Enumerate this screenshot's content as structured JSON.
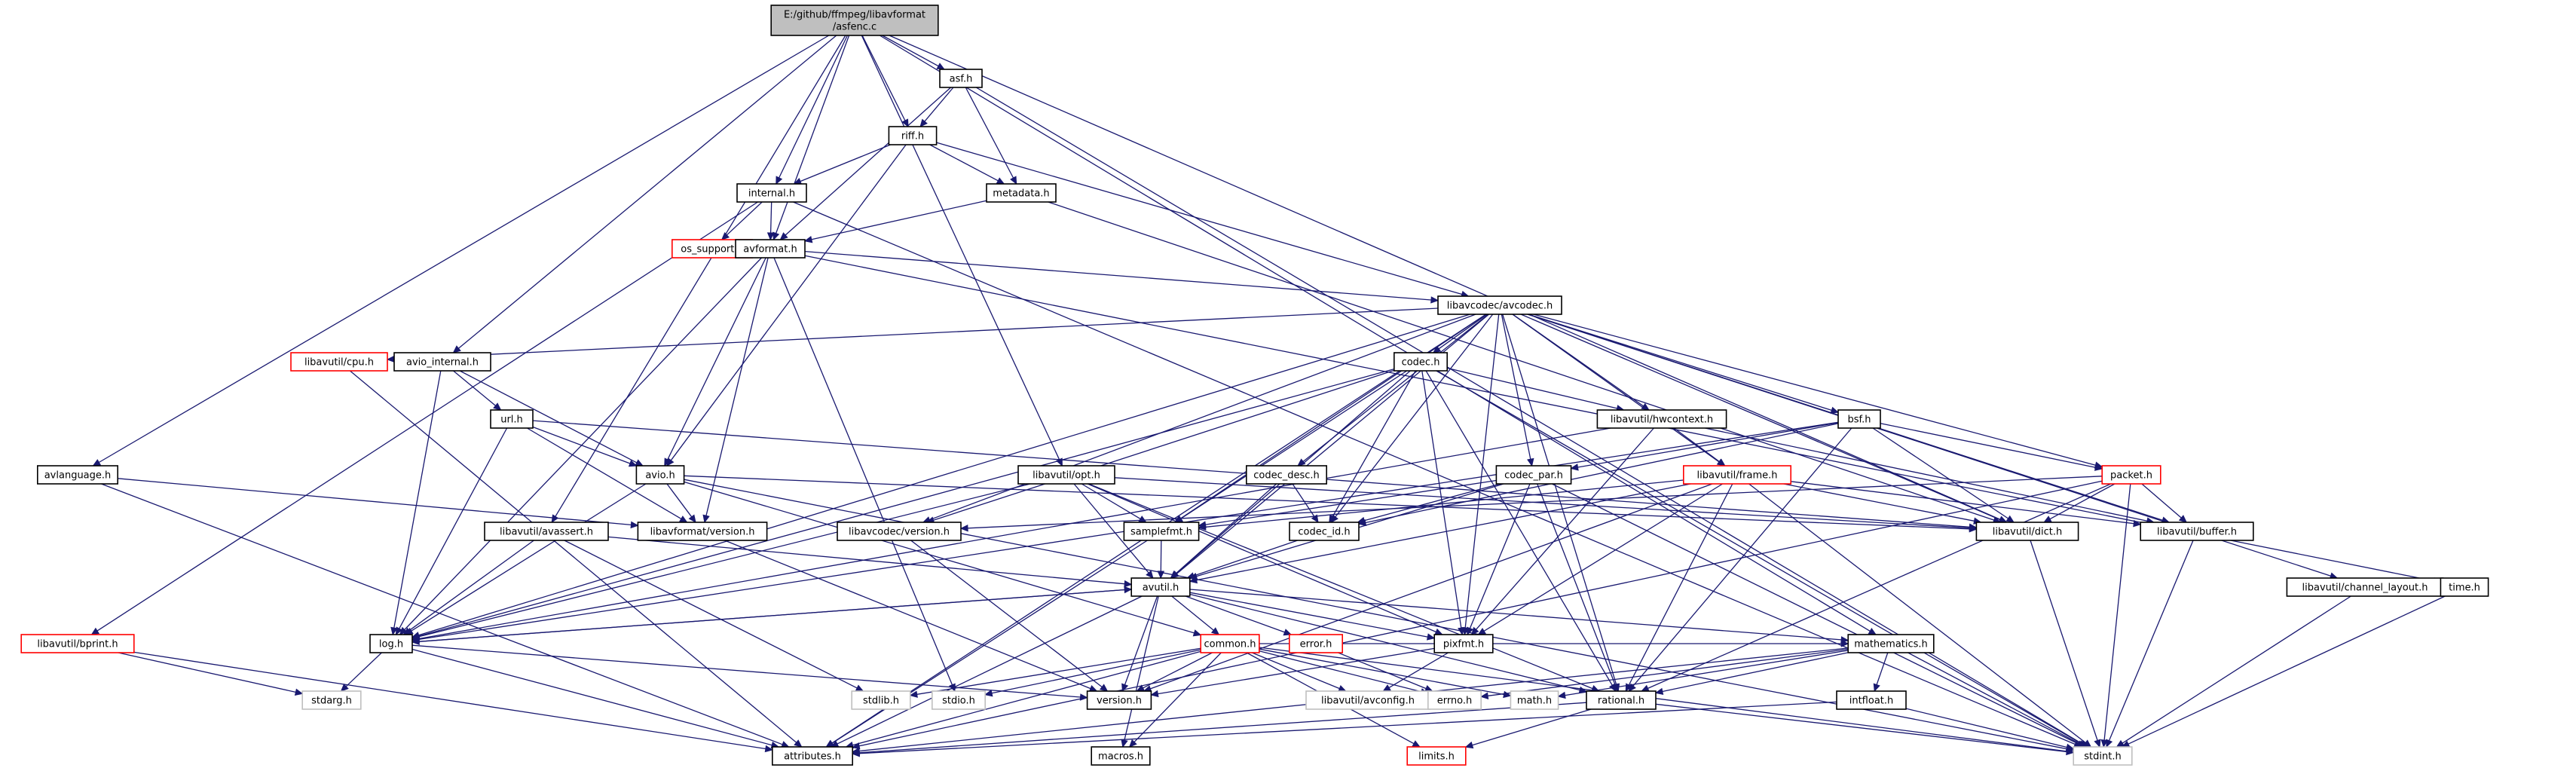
{
  "colors": {
    "root_fill": "#bfbfbf",
    "normal_fill": "#ffffff",
    "normal_border": "#000000",
    "truncated_border": "#ff0000",
    "edge": "#191970"
  },
  "nodes": [
    {
      "id": "asfenc",
      "lines": [
        "E:/github/ffmpeg/libavformat",
        "/asfenc.c"
      ],
      "style": "root"
    },
    {
      "id": "asf",
      "lines": [
        "asf.h"
      ],
      "style": "normal"
    },
    {
      "id": "riff",
      "lines": [
        "riff.h"
      ],
      "style": "normal"
    },
    {
      "id": "internal",
      "lines": [
        "internal.h"
      ],
      "style": "normal"
    },
    {
      "id": "metadata",
      "lines": [
        "metadata.h"
      ],
      "style": "normal"
    },
    {
      "id": "os_support",
      "lines": [
        "os_support.h"
      ],
      "style": "truncated"
    },
    {
      "id": "avformat",
      "lines": [
        "avformat.h"
      ],
      "style": "normal"
    },
    {
      "id": "avcodec",
      "lines": [
        "libavcodec/avcodec.h"
      ],
      "style": "normal"
    },
    {
      "id": "cpu",
      "lines": [
        "libavutil/cpu.h"
      ],
      "style": "truncated"
    },
    {
      "id": "avio_internal",
      "lines": [
        "avio_internal.h"
      ],
      "style": "normal"
    },
    {
      "id": "codec",
      "lines": [
        "codec.h"
      ],
      "style": "normal"
    },
    {
      "id": "url",
      "lines": [
        "url.h"
      ],
      "style": "normal"
    },
    {
      "id": "hwcontext",
      "lines": [
        "libavutil/hwcontext.h"
      ],
      "style": "normal"
    },
    {
      "id": "bsf",
      "lines": [
        "bsf.h"
      ],
      "style": "normal"
    },
    {
      "id": "avlanguage",
      "lines": [
        "avlanguage.h"
      ],
      "style": "normal"
    },
    {
      "id": "avio",
      "lines": [
        "avio.h"
      ],
      "style": "normal"
    },
    {
      "id": "opt",
      "lines": [
        "libavutil/opt.h"
      ],
      "style": "normal"
    },
    {
      "id": "codec_desc",
      "lines": [
        "codec_desc.h"
      ],
      "style": "normal"
    },
    {
      "id": "codec_par",
      "lines": [
        "codec_par.h"
      ],
      "style": "normal"
    },
    {
      "id": "frame",
      "lines": [
        "libavutil/frame.h"
      ],
      "style": "truncated"
    },
    {
      "id": "packet",
      "lines": [
        "packet.h"
      ],
      "style": "truncated"
    },
    {
      "id": "avassert",
      "lines": [
        "libavutil/avassert.h"
      ],
      "style": "normal"
    },
    {
      "id": "lavf_version",
      "lines": [
        "libavformat/version.h"
      ],
      "style": "normal"
    },
    {
      "id": "lavc_version",
      "lines": [
        "libavcodec/version.h"
      ],
      "style": "normal"
    },
    {
      "id": "samplefmt",
      "lines": [
        "samplefmt.h"
      ],
      "style": "normal"
    },
    {
      "id": "codec_id",
      "lines": [
        "codec_id.h"
      ],
      "style": "normal"
    },
    {
      "id": "dict",
      "lines": [
        "libavutil/dict.h"
      ],
      "style": "normal"
    },
    {
      "id": "buffer",
      "lines": [
        "libavutil/buffer.h"
      ],
      "style": "normal"
    },
    {
      "id": "avutil",
      "lines": [
        "avutil.h"
      ],
      "style": "normal"
    },
    {
      "id": "channel_layout",
      "lines": [
        "libavutil/channel_layout.h"
      ],
      "style": "normal"
    },
    {
      "id": "time",
      "lines": [
        "time.h"
      ],
      "style": "normal"
    },
    {
      "id": "bprint",
      "lines": [
        "libavutil/bprint.h"
      ],
      "style": "truncated"
    },
    {
      "id": "log",
      "lines": [
        "log.h"
      ],
      "style": "normal"
    },
    {
      "id": "common",
      "lines": [
        "common.h"
      ],
      "style": "truncated"
    },
    {
      "id": "error",
      "lines": [
        "error.h"
      ],
      "style": "truncated"
    },
    {
      "id": "pixfmt",
      "lines": [
        "pixfmt.h"
      ],
      "style": "normal"
    },
    {
      "id": "mathematics",
      "lines": [
        "mathematics.h"
      ],
      "style": "normal"
    },
    {
      "id": "stdarg",
      "lines": [
        "stdarg.h"
      ],
      "style": "plain"
    },
    {
      "id": "stdlib",
      "lines": [
        "stdlib.h"
      ],
      "style": "plain"
    },
    {
      "id": "stdio",
      "lines": [
        "stdio.h"
      ],
      "style": "plain"
    },
    {
      "id": "version",
      "lines": [
        "version.h"
      ],
      "style": "normal"
    },
    {
      "id": "avconfig",
      "lines": [
        "libavutil/avconfig.h"
      ],
      "style": "plain"
    },
    {
      "id": "errno",
      "lines": [
        "errno.h"
      ],
      "style": "plain"
    },
    {
      "id": "math",
      "lines": [
        "math.h"
      ],
      "style": "plain"
    },
    {
      "id": "rational",
      "lines": [
        "rational.h"
      ],
      "style": "normal"
    },
    {
      "id": "intfloat",
      "lines": [
        "intfloat.h"
      ],
      "style": "normal"
    },
    {
      "id": "attributes",
      "lines": [
        "attributes.h"
      ],
      "style": "normal"
    },
    {
      "id": "macros",
      "lines": [
        "macros.h"
      ],
      "style": "normal"
    },
    {
      "id": "limits",
      "lines": [
        "limits.h"
      ],
      "style": "truncated"
    },
    {
      "id": "stdint",
      "lines": [
        "stdint.h"
      ],
      "style": "plain"
    }
  ],
  "edges": [
    [
      "asfenc",
      "asf"
    ],
    [
      "asfenc",
      "riff"
    ],
    [
      "asfenc",
      "internal"
    ],
    [
      "asfenc",
      "avformat"
    ],
    [
      "asfenc",
      "avio_internal"
    ],
    [
      "asfenc",
      "avlanguage"
    ],
    [
      "asfenc",
      "opt"
    ],
    [
      "asfenc",
      "avassert"
    ],
    [
      "asfenc",
      "dict"
    ],
    [
      "asfenc",
      "mathematics"
    ],
    [
      "asf",
      "riff"
    ],
    [
      "asf",
      "metadata"
    ],
    [
      "asf",
      "avformat"
    ],
    [
      "asf",
      "stdint"
    ],
    [
      "riff",
      "internal"
    ],
    [
      "riff",
      "metadata"
    ],
    [
      "riff",
      "avcodec"
    ],
    [
      "riff",
      "avio"
    ],
    [
      "internal",
      "os_support"
    ],
    [
      "internal",
      "avformat"
    ],
    [
      "internal",
      "bprint"
    ],
    [
      "internal",
      "stdint"
    ],
    [
      "metadata",
      "avformat"
    ],
    [
      "metadata",
      "dict"
    ],
    [
      "avformat",
      "avcodec"
    ],
    [
      "avformat",
      "avio"
    ],
    [
      "avformat",
      "lavf_version"
    ],
    [
      "avformat",
      "log"
    ],
    [
      "avformat",
      "stdio"
    ],
    [
      "avformat",
      "time"
    ],
    [
      "avcodec",
      "cpu"
    ],
    [
      "avcodec",
      "codec"
    ],
    [
      "avcodec",
      "hwcontext"
    ],
    [
      "avcodec",
      "bsf"
    ],
    [
      "avcodec",
      "codec_desc"
    ],
    [
      "avcodec",
      "codec_par"
    ],
    [
      "avcodec",
      "frame"
    ],
    [
      "avcodec",
      "packet"
    ],
    [
      "avcodec",
      "lavc_version"
    ],
    [
      "avcodec",
      "samplefmt"
    ],
    [
      "avcodec",
      "codec_id"
    ],
    [
      "avcodec",
      "dict"
    ],
    [
      "avcodec",
      "buffer"
    ],
    [
      "avcodec",
      "avutil"
    ],
    [
      "avcodec",
      "channel_layout"
    ],
    [
      "avcodec",
      "attributes"
    ],
    [
      "avcodec",
      "log"
    ],
    [
      "avcodec",
      "pixfmt"
    ],
    [
      "avcodec",
      "rational"
    ],
    [
      "cpu",
      "attributes"
    ],
    [
      "avio_internal",
      "url"
    ],
    [
      "avio_internal",
      "avio"
    ],
    [
      "avio_internal",
      "log"
    ],
    [
      "codec",
      "hwcontext"
    ],
    [
      "codec",
      "avutil"
    ],
    [
      "codec",
      "samplefmt"
    ],
    [
      "codec",
      "codec_id"
    ],
    [
      "codec",
      "log"
    ],
    [
      "codec",
      "pixfmt"
    ],
    [
      "codec",
      "rational"
    ],
    [
      "codec",
      "lavc_version"
    ],
    [
      "codec",
      "stdint"
    ],
    [
      "url",
      "avio"
    ],
    [
      "url",
      "lavf_version"
    ],
    [
      "url",
      "dict"
    ],
    [
      "url",
      "log"
    ],
    [
      "hwcontext",
      "frame"
    ],
    [
      "hwcontext",
      "buffer"
    ],
    [
      "hwcontext",
      "pixfmt"
    ],
    [
      "hwcontext",
      "log"
    ],
    [
      "bsf",
      "codec_id"
    ],
    [
      "bsf",
      "codec_par"
    ],
    [
      "bsf",
      "packet"
    ],
    [
      "bsf",
      "dict"
    ],
    [
      "bsf",
      "log"
    ],
    [
      "bsf",
      "rational"
    ],
    [
      "avlanguage",
      "lavf_version"
    ],
    [
      "avlanguage",
      "attributes"
    ],
    [
      "avio",
      "common"
    ],
    [
      "avio",
      "dict"
    ],
    [
      "avio",
      "log"
    ],
    [
      "avio",
      "lavf_version"
    ],
    [
      "avio",
      "stdint"
    ],
    [
      "opt",
      "avutil"
    ],
    [
      "opt",
      "dict"
    ],
    [
      "opt",
      "log"
    ],
    [
      "opt",
      "pixfmt"
    ],
    [
      "opt",
      "samplefmt"
    ],
    [
      "opt",
      "rational"
    ],
    [
      "codec_desc",
      "codec_id"
    ],
    [
      "codec_desc",
      "avutil"
    ],
    [
      "codec_par",
      "avutil"
    ],
    [
      "codec_par",
      "rational"
    ],
    [
      "codec_par",
      "pixfmt"
    ],
    [
      "codec_par",
      "codec_id"
    ],
    [
      "codec_par",
      "samplefmt"
    ],
    [
      "codec_par",
      "stdint"
    ],
    [
      "frame",
      "avutil"
    ],
    [
      "frame",
      "buffer"
    ],
    [
      "frame",
      "dict"
    ],
    [
      "frame",
      "rational"
    ],
    [
      "frame",
      "samplefmt"
    ],
    [
      "frame",
      "pixfmt"
    ],
    [
      "frame",
      "version"
    ],
    [
      "frame",
      "stdint"
    ],
    [
      "packet",
      "attributes"
    ],
    [
      "packet",
      "buffer"
    ],
    [
      "packet",
      "dict"
    ],
    [
      "packet",
      "rational"
    ],
    [
      "packet",
      "lavc_version"
    ],
    [
      "packet",
      "stdint"
    ],
    [
      "avassert",
      "avutil"
    ],
    [
      "avassert",
      "log"
    ],
    [
      "avassert",
      "stdlib"
    ],
    [
      "lavf_version",
      "version"
    ],
    [
      "lavc_version",
      "version"
    ],
    [
      "samplefmt",
      "avutil"
    ],
    [
      "samplefmt",
      "attributes"
    ],
    [
      "codec_id",
      "avutil"
    ],
    [
      "dict",
      "stdint"
    ],
    [
      "buffer",
      "stdint"
    ],
    [
      "avutil",
      "attributes"
    ],
    [
      "avutil",
      "macros"
    ],
    [
      "avutil",
      "version"
    ],
    [
      "avutil",
      "common"
    ],
    [
      "avutil",
      "error"
    ],
    [
      "avutil",
      "rational"
    ],
    [
      "avutil",
      "mathematics"
    ],
    [
      "avutil",
      "log"
    ],
    [
      "avutil",
      "pixfmt"
    ],
    [
      "channel_layout",
      "stdint"
    ],
    [
      "time",
      "stdint"
    ],
    [
      "bprint",
      "attributes"
    ],
    [
      "bprint",
      "stdarg"
    ],
    [
      "log",
      "attributes"
    ],
    [
      "log",
      "version"
    ],
    [
      "log",
      "stdarg"
    ],
    [
      "log",
      "avutil"
    ],
    [
      "common",
      "errno"
    ],
    [
      "common",
      "math"
    ],
    [
      "common",
      "stdio"
    ],
    [
      "common",
      "stdlib"
    ],
    [
      "common",
      "attributes"
    ],
    [
      "common",
      "macros"
    ],
    [
      "common",
      "version"
    ],
    [
      "common",
      "avconfig"
    ],
    [
      "common",
      "limits"
    ],
    [
      "common",
      "stdint"
    ],
    [
      "common",
      "mathematics"
    ],
    [
      "error",
      "errno"
    ],
    [
      "pixfmt",
      "avconfig"
    ],
    [
      "pixfmt",
      "version"
    ],
    [
      "mathematics",
      "math"
    ],
    [
      "mathematics",
      "errno"
    ],
    [
      "mathematics",
      "rational"
    ],
    [
      "mathematics",
      "intfloat"
    ],
    [
      "mathematics",
      "attributes"
    ],
    [
      "mathematics",
      "stdint"
    ],
    [
      "rational",
      "attributes"
    ],
    [
      "rational",
      "limits"
    ],
    [
      "rational",
      "stdint"
    ],
    [
      "intfloat",
      "attributes"
    ],
    [
      "intfloat",
      "stdint"
    ]
  ]
}
